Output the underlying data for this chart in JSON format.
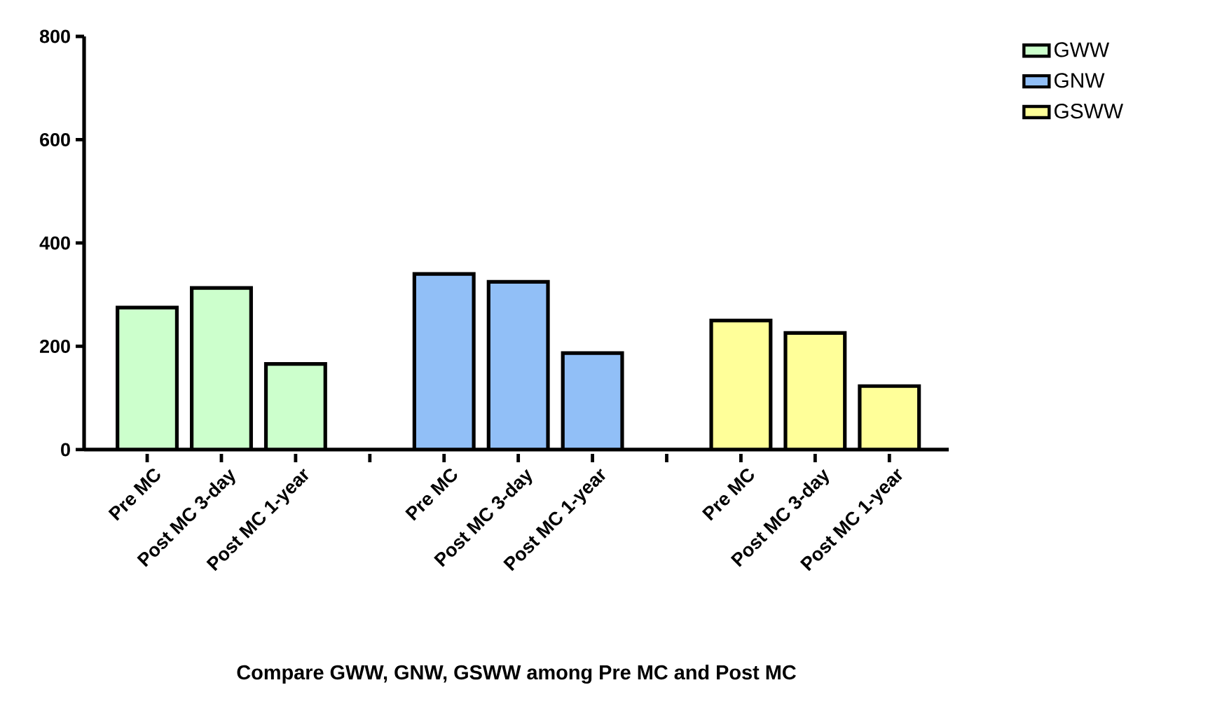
{
  "chart_data": {
    "type": "bar",
    "xlabel": "Compare  GWW, GNW, GSWW among Pre MC and Post MC",
    "categories": [
      "Pre MC",
      "Post MC 3-day",
      "Post MC 1-year",
      null,
      "Pre MC",
      "Post MC 3-day",
      "Post MC 1-year",
      null,
      "Pre MC",
      "Post MC 3-day",
      "Post MC 1-year"
    ],
    "series": [
      {
        "name": "GWW",
        "color": "#ccffcc",
        "values": [
          275,
          313,
          166,
          null,
          null,
          null,
          null,
          null,
          null,
          null,
          null
        ]
      },
      {
        "name": "GNW",
        "color": "#91bff7",
        "values": [
          null,
          null,
          null,
          null,
          340,
          325,
          187,
          null,
          null,
          null,
          null
        ]
      },
      {
        "name": "GSWW",
        "color": "#ffff99",
        "values": [
          null,
          null,
          null,
          null,
          null,
          null,
          null,
          null,
          250,
          226,
          123
        ]
      }
    ],
    "ylim": [
      0,
      800
    ],
    "yticks": [
      0,
      200,
      400,
      600,
      800
    ],
    "legend": "top right"
  }
}
